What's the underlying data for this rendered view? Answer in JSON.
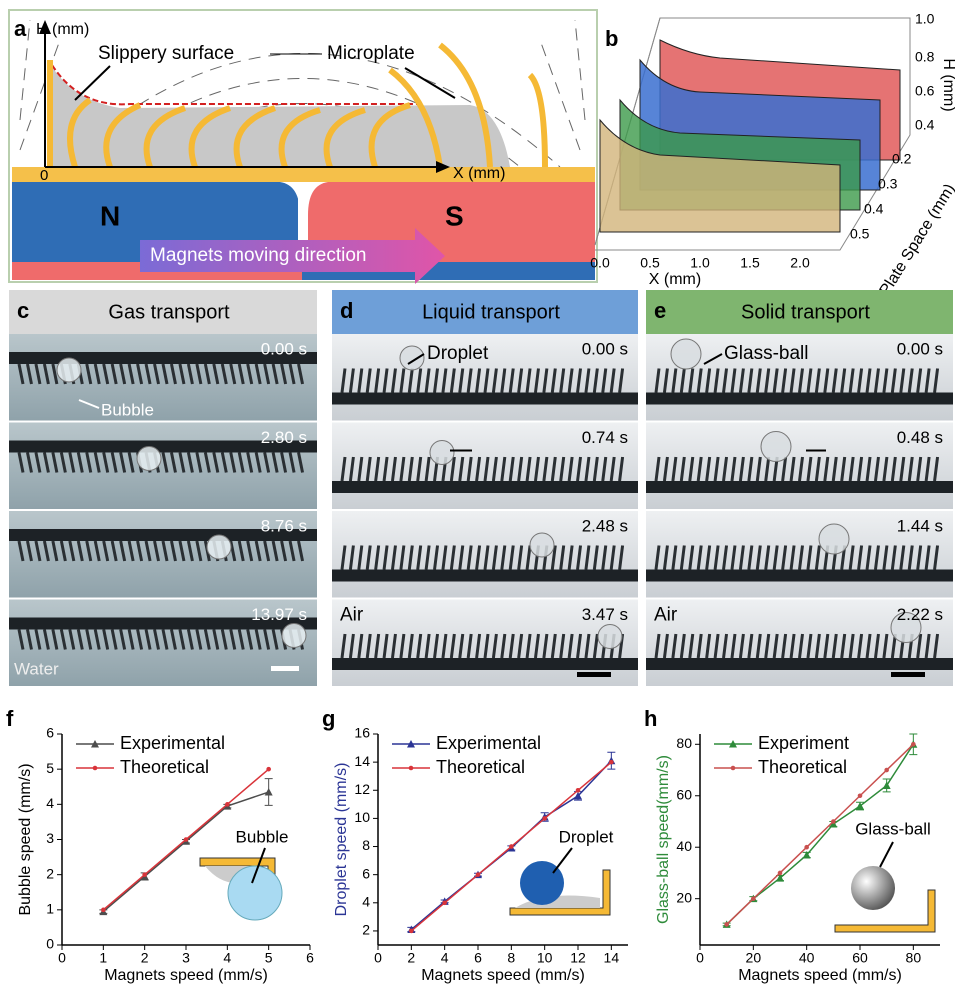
{
  "panels": {
    "a": {
      "label": "a",
      "y_axis": "H (mm)",
      "x_axis": "X (mm)",
      "origin": "0",
      "surface": "Slippery surface",
      "plate": "Microplate",
      "north": "N",
      "south": "S",
      "direction": "Magnets moving direction"
    },
    "b": {
      "label": "b",
      "z_ticks": [
        "1.0",
        "0.8",
        "0.6",
        "0.4"
      ],
      "z_label": "H (mm)",
      "y_ticks": [
        "0.2",
        "0.3",
        "0.4",
        "0.5"
      ],
      "y_label": "Plate Space (mm)",
      "x_ticks": [
        "0.0",
        "0.5",
        "1.0",
        "1.5",
        "2.0"
      ],
      "x_label": "X (mm)"
    },
    "c": {
      "label": "c",
      "header": "Gas transport",
      "times": [
        "0.00 s",
        "2.80 s",
        "8.76 s",
        "13.97 s"
      ],
      "annotation": "Bubble",
      "medium": "Water"
    },
    "d": {
      "label": "d",
      "header": "Liquid transport",
      "times": [
        "0.00 s",
        "0.74 s",
        "2.48 s",
        "3.47 s"
      ],
      "annotation": "Droplet",
      "medium": "Air"
    },
    "e": {
      "label": "e",
      "header": "Solid transport",
      "times": [
        "0.00 s",
        "0.48 s",
        "1.44 s",
        "2.22 s"
      ],
      "annotation": "Glass-ball",
      "medium": "Air"
    }
  },
  "chart_data": [
    {
      "type": "line",
      "panel_label": "f",
      "xlabel": "Magnets speed (mm/s)",
      "ylabel": "Bubble speed (mm/s)",
      "ylabel_color": "#000000",
      "x": [
        1,
        2,
        3,
        4,
        5
      ],
      "xlim": [
        0,
        6
      ],
      "ylim": [
        0,
        6
      ],
      "xticks": [
        0,
        1,
        2,
        3,
        4,
        5,
        6
      ],
      "yticks": [
        0,
        1,
        2,
        3,
        4,
        5,
        6
      ],
      "legend": "upper left",
      "annotation": "Bubble",
      "series": [
        {
          "name": "Experimental",
          "color": "#4d4d4d",
          "marker": "triangle",
          "values": [
            0.95,
            1.95,
            2.95,
            3.95,
            4.35
          ],
          "errors": [
            0.05,
            0.1,
            0.05,
            0.05,
            0.38
          ]
        },
        {
          "name": "Theoretical",
          "color": "#d9343a",
          "marker": "circle",
          "values": [
            1,
            2,
            3,
            4,
            5
          ]
        }
      ]
    },
    {
      "type": "line",
      "panel_label": "g",
      "xlabel": "Magnets speed (mm/s)",
      "ylabel": "Droplet speed (mm/s)",
      "ylabel_color": "#2b3595",
      "x": [
        2,
        4,
        6,
        8,
        10,
        12,
        14
      ],
      "xlim": [
        0,
        15
      ],
      "ylim": [
        1,
        16
      ],
      "xticks": [
        0,
        2,
        4,
        6,
        8,
        10,
        12,
        14
      ],
      "yticks": [
        2,
        4,
        6,
        8,
        10,
        12,
        14,
        16
      ],
      "legend": "upper left",
      "annotation": "Droplet",
      "series": [
        {
          "name": "Experimental",
          "color": "#2b3595",
          "marker": "triangle",
          "values": [
            2.1,
            4.1,
            6,
            7.9,
            10.1,
            11.6,
            14.1
          ],
          "errors": [
            0.15,
            0.1,
            0.1,
            0.15,
            0.3,
            0.3,
            0.6
          ]
        },
        {
          "name": "Theoretical",
          "color": "#d9343a",
          "marker": "circle",
          "values": [
            2,
            4,
            6,
            8,
            10,
            12,
            14
          ]
        }
      ]
    },
    {
      "type": "line",
      "panel_label": "h",
      "xlabel": "Magnets speed (mm/s)",
      "ylabel": "Glass-ball speed(mm/s)",
      "ylabel_color": "#2e8b3a",
      "x": [
        10,
        20,
        30,
        40,
        50,
        60,
        70,
        80
      ],
      "xlim": [
        0,
        90
      ],
      "ylim": [
        2,
        84
      ],
      "xticks": [
        0,
        20,
        40,
        60,
        80
      ],
      "yticks": [
        20,
        40,
        60,
        80
      ],
      "legend": "upper left",
      "annotation": "Glass-ball",
      "series": [
        {
          "name": "Experiment",
          "color": "#2e8b3a",
          "marker": "triangle",
          "values": [
            10,
            20,
            28,
            37,
            49,
            56,
            64,
            80
          ],
          "errors": [
            0.5,
            0.8,
            1,
            1,
            1,
            1.5,
            2.5,
            4
          ]
        },
        {
          "name": "Theoretical",
          "color": "#c9504f",
          "marker": "circle",
          "values": [
            10,
            20,
            30,
            40,
            50,
            60,
            70,
            80
          ]
        }
      ]
    }
  ]
}
